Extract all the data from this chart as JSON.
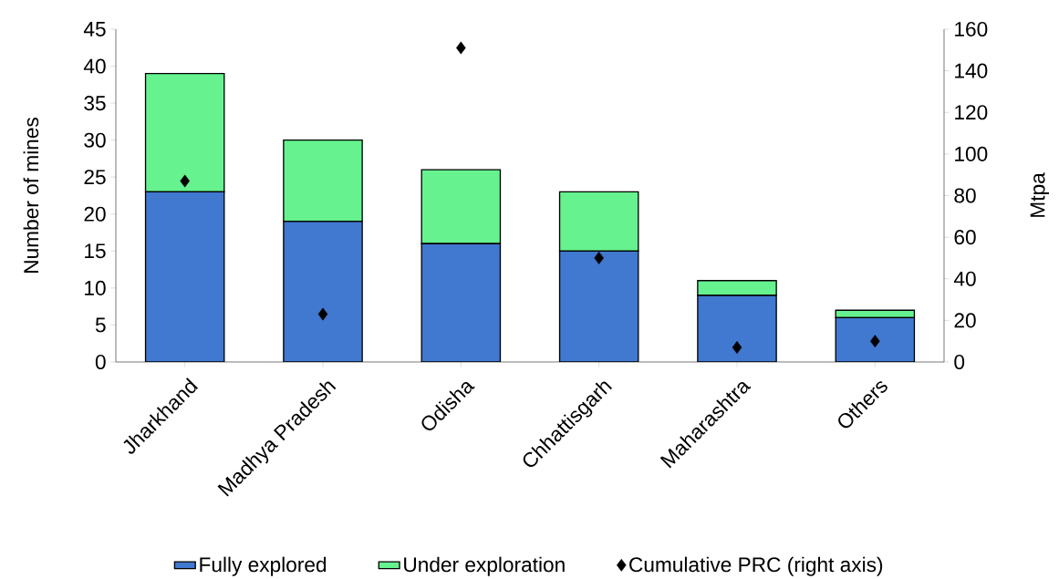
{
  "chart_data": {
    "type": "bar",
    "stacked": true,
    "ylabel": "Number of mines",
    "y2label": "Mtpa",
    "categories": [
      "Jharkhand",
      "Madhya Pradesh",
      "Odisha",
      "Chhattisgarh",
      "Maharashtra",
      "Others"
    ],
    "series": [
      {
        "name": "Fully explored",
        "color": "#4178d0",
        "values": [
          23,
          19,
          16,
          15,
          9,
          6
        ]
      },
      {
        "name": "Under exploration",
        "color": "#66f28f",
        "values": [
          16,
          11,
          10,
          8,
          2,
          1
        ]
      },
      {
        "name": "Cumulative PRC (right axis)",
        "type": "scatter",
        "axis": "y2",
        "marker": "diamond",
        "color": "#000000",
        "values": [
          87,
          23,
          151,
          50,
          7,
          10
        ]
      }
    ],
    "ylim": [
      0,
      45
    ],
    "yticks": [
      0,
      5,
      10,
      15,
      20,
      25,
      30,
      35,
      40,
      45
    ],
    "y2lim": [
      0,
      160
    ],
    "y2ticks": [
      0,
      20,
      40,
      60,
      80,
      100,
      120,
      140,
      160
    ],
    "legend": "bottom"
  }
}
